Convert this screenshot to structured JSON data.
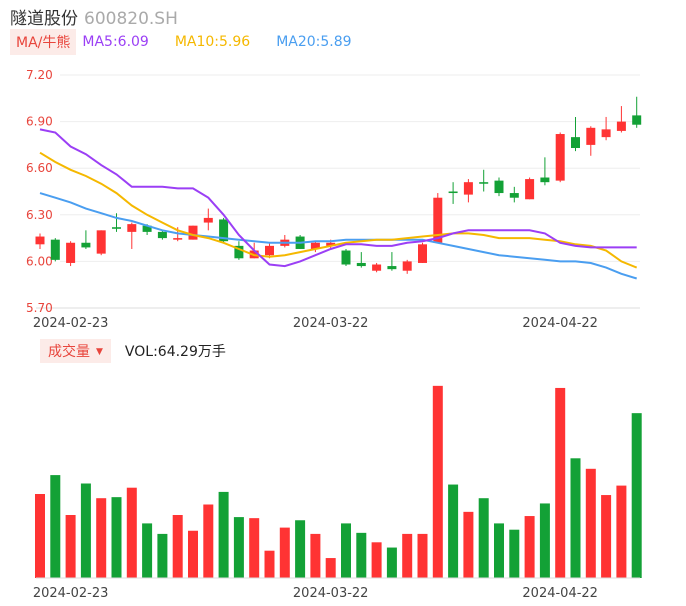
{
  "header": {
    "name": "隧道股份",
    "code": "600820.SH"
  },
  "legend": {
    "ma_button": "MA/牛熊",
    "ma5_label": "MA5:6.09",
    "ma10_label": "MA10:5.96",
    "ma20_label": "MA20:5.89"
  },
  "volume_legend": {
    "button": "成交量",
    "vol_label": "VOL:64.29万手"
  },
  "colors": {
    "up": "#ff3333",
    "down": "#13a136",
    "ma5": "#9b3ff5",
    "ma10": "#f5b800",
    "ma20": "#4a9ef0",
    "grid": "#eeeeee",
    "axis_text": "#e8453c"
  },
  "chart_data": {
    "type": "candlestick",
    "y_ticks": [
      "7.20",
      "6.90",
      "6.60",
      "6.30",
      "6.00",
      "5.70"
    ],
    "ylim": [
      5.7,
      7.2
    ],
    "x_tick_labels": [
      {
        "index": 2,
        "label": "2024-02-23"
      },
      {
        "index": 19,
        "label": "2024-03-22"
      },
      {
        "index": 34,
        "label": "2024-04-22"
      }
    ],
    "candles": [
      {
        "o": 6.11,
        "c": 6.16,
        "h": 6.18,
        "l": 6.08,
        "up": true
      },
      {
        "o": 6.14,
        "c": 6.01,
        "h": 6.15,
        "l": 6.0,
        "up": false
      },
      {
        "o": 5.99,
        "c": 6.12,
        "h": 6.13,
        "l": 5.97,
        "up": true
      },
      {
        "o": 6.12,
        "c": 6.09,
        "h": 6.2,
        "l": 6.08,
        "up": false
      },
      {
        "o": 6.05,
        "c": 6.2,
        "h": 6.2,
        "l": 6.04,
        "up": true
      },
      {
        "o": 6.22,
        "c": 6.21,
        "h": 6.31,
        "l": 6.19,
        "up": false
      },
      {
        "o": 6.19,
        "c": 6.24,
        "h": 6.25,
        "l": 6.08,
        "up": true
      },
      {
        "o": 6.23,
        "c": 6.19,
        "h": 6.24,
        "l": 6.17,
        "up": false
      },
      {
        "o": 6.19,
        "c": 6.15,
        "h": 6.2,
        "l": 6.14,
        "up": false
      },
      {
        "o": 6.14,
        "c": 6.15,
        "h": 6.22,
        "l": 6.13,
        "up": true
      },
      {
        "o": 6.14,
        "c": 6.23,
        "h": 6.23,
        "l": 6.14,
        "up": true
      },
      {
        "o": 6.25,
        "c": 6.28,
        "h": 6.34,
        "l": 6.2,
        "up": true
      },
      {
        "o": 6.27,
        "c": 6.13,
        "h": 6.28,
        "l": 6.12,
        "up": false
      },
      {
        "o": 6.1,
        "c": 6.02,
        "h": 6.13,
        "l": 6.01,
        "up": false
      },
      {
        "o": 6.02,
        "c": 6.07,
        "h": 6.12,
        "l": 6.02,
        "up": true
      },
      {
        "o": 6.04,
        "c": 6.1,
        "h": 6.12,
        "l": 6.02,
        "up": true
      },
      {
        "o": 6.1,
        "c": 6.14,
        "h": 6.17,
        "l": 6.09,
        "up": true
      },
      {
        "o": 6.16,
        "c": 6.08,
        "h": 6.17,
        "l": 6.08,
        "up": false
      },
      {
        "o": 6.08,
        "c": 6.12,
        "h": 6.13,
        "l": 6.06,
        "up": true
      },
      {
        "o": 6.1,
        "c": 6.12,
        "h": 6.14,
        "l": 6.08,
        "up": true
      },
      {
        "o": 6.07,
        "c": 5.98,
        "h": 6.08,
        "l": 5.97,
        "up": false
      },
      {
        "o": 5.99,
        "c": 5.97,
        "h": 6.06,
        "l": 5.96,
        "up": false
      },
      {
        "o": 5.94,
        "c": 5.98,
        "h": 5.99,
        "l": 5.93,
        "up": true
      },
      {
        "o": 5.97,
        "c": 5.95,
        "h": 6.06,
        "l": 5.94,
        "up": false
      },
      {
        "o": 5.94,
        "c": 6.0,
        "h": 6.01,
        "l": 5.92,
        "up": true
      },
      {
        "o": 5.99,
        "c": 6.11,
        "h": 6.12,
        "l": 5.99,
        "up": true
      },
      {
        "o": 6.12,
        "c": 6.41,
        "h": 6.44,
        "l": 6.12,
        "up": true
      },
      {
        "o": 6.45,
        "c": 6.44,
        "h": 6.51,
        "l": 6.37,
        "up": false
      },
      {
        "o": 6.43,
        "c": 6.51,
        "h": 6.53,
        "l": 6.38,
        "up": true
      },
      {
        "o": 6.51,
        "c": 6.5,
        "h": 6.59,
        "l": 6.45,
        "up": false
      },
      {
        "o": 6.52,
        "c": 6.44,
        "h": 6.54,
        "l": 6.42,
        "up": false
      },
      {
        "o": 6.44,
        "c": 6.41,
        "h": 6.48,
        "l": 6.38,
        "up": false
      },
      {
        "o": 6.4,
        "c": 6.53,
        "h": 6.54,
        "l": 6.4,
        "up": true
      },
      {
        "o": 6.54,
        "c": 6.51,
        "h": 6.67,
        "l": 6.49,
        "up": false
      },
      {
        "o": 6.52,
        "c": 6.82,
        "h": 6.83,
        "l": 6.51,
        "up": true
      },
      {
        "o": 6.8,
        "c": 6.73,
        "h": 6.93,
        "l": 6.71,
        "up": false
      },
      {
        "o": 6.75,
        "c": 6.86,
        "h": 6.87,
        "l": 6.68,
        "up": true
      },
      {
        "o": 6.8,
        "c": 6.85,
        "h": 6.93,
        "l": 6.78,
        "up": true
      },
      {
        "o": 6.84,
        "c": 6.9,
        "h": 7.0,
        "l": 6.83,
        "up": true
      },
      {
        "o": 6.94,
        "c": 6.88,
        "h": 7.06,
        "l": 6.86,
        "up": false
      }
    ],
    "ma5": [
      6.85,
      6.83,
      6.74,
      6.69,
      6.62,
      6.56,
      6.48,
      6.48,
      6.48,
      6.47,
      6.47,
      6.41,
      6.3,
      6.17,
      6.07,
      5.98,
      5.97,
      6.0,
      6.04,
      6.08,
      6.11,
      6.11,
      6.1,
      6.1,
      6.12,
      6.13,
      6.15,
      6.18,
      6.2,
      6.2,
      6.2,
      6.2,
      6.2,
      6.18,
      6.12,
      6.1,
      6.09,
      6.09,
      6.09,
      6.09
    ],
    "ma10": [
      6.7,
      6.64,
      6.59,
      6.55,
      6.5,
      6.44,
      6.36,
      6.3,
      6.25,
      6.2,
      6.17,
      6.15,
      6.12,
      6.08,
      6.04,
      6.03,
      6.04,
      6.06,
      6.08,
      6.1,
      6.12,
      6.13,
      6.14,
      6.14,
      6.15,
      6.16,
      6.17,
      6.18,
      6.18,
      6.17,
      6.15,
      6.15,
      6.15,
      6.14,
      6.13,
      6.11,
      6.1,
      6.07,
      6.0,
      5.96
    ],
    "ma20": [
      6.44,
      6.41,
      6.38,
      6.34,
      6.31,
      6.28,
      6.26,
      6.23,
      6.2,
      6.18,
      6.17,
      6.16,
      6.15,
      6.14,
      6.13,
      6.12,
      6.12,
      6.12,
      6.13,
      6.13,
      6.14,
      6.14,
      6.14,
      6.14,
      6.14,
      6.14,
      6.12,
      6.1,
      6.08,
      6.06,
      6.04,
      6.03,
      6.02,
      6.01,
      6.0,
      6.0,
      5.99,
      5.96,
      5.92,
      5.89
    ],
    "volumes": [
      80,
      98,
      60,
      90,
      76,
      77,
      86,
      52,
      42,
      60,
      45,
      70,
      82,
      58,
      57,
      26,
      48,
      55,
      42,
      19,
      52,
      43,
      34,
      29,
      42,
      42,
      183,
      89,
      63,
      76,
      52,
      46,
      59,
      71,
      181,
      114,
      104,
      79,
      88,
      157
    ]
  }
}
